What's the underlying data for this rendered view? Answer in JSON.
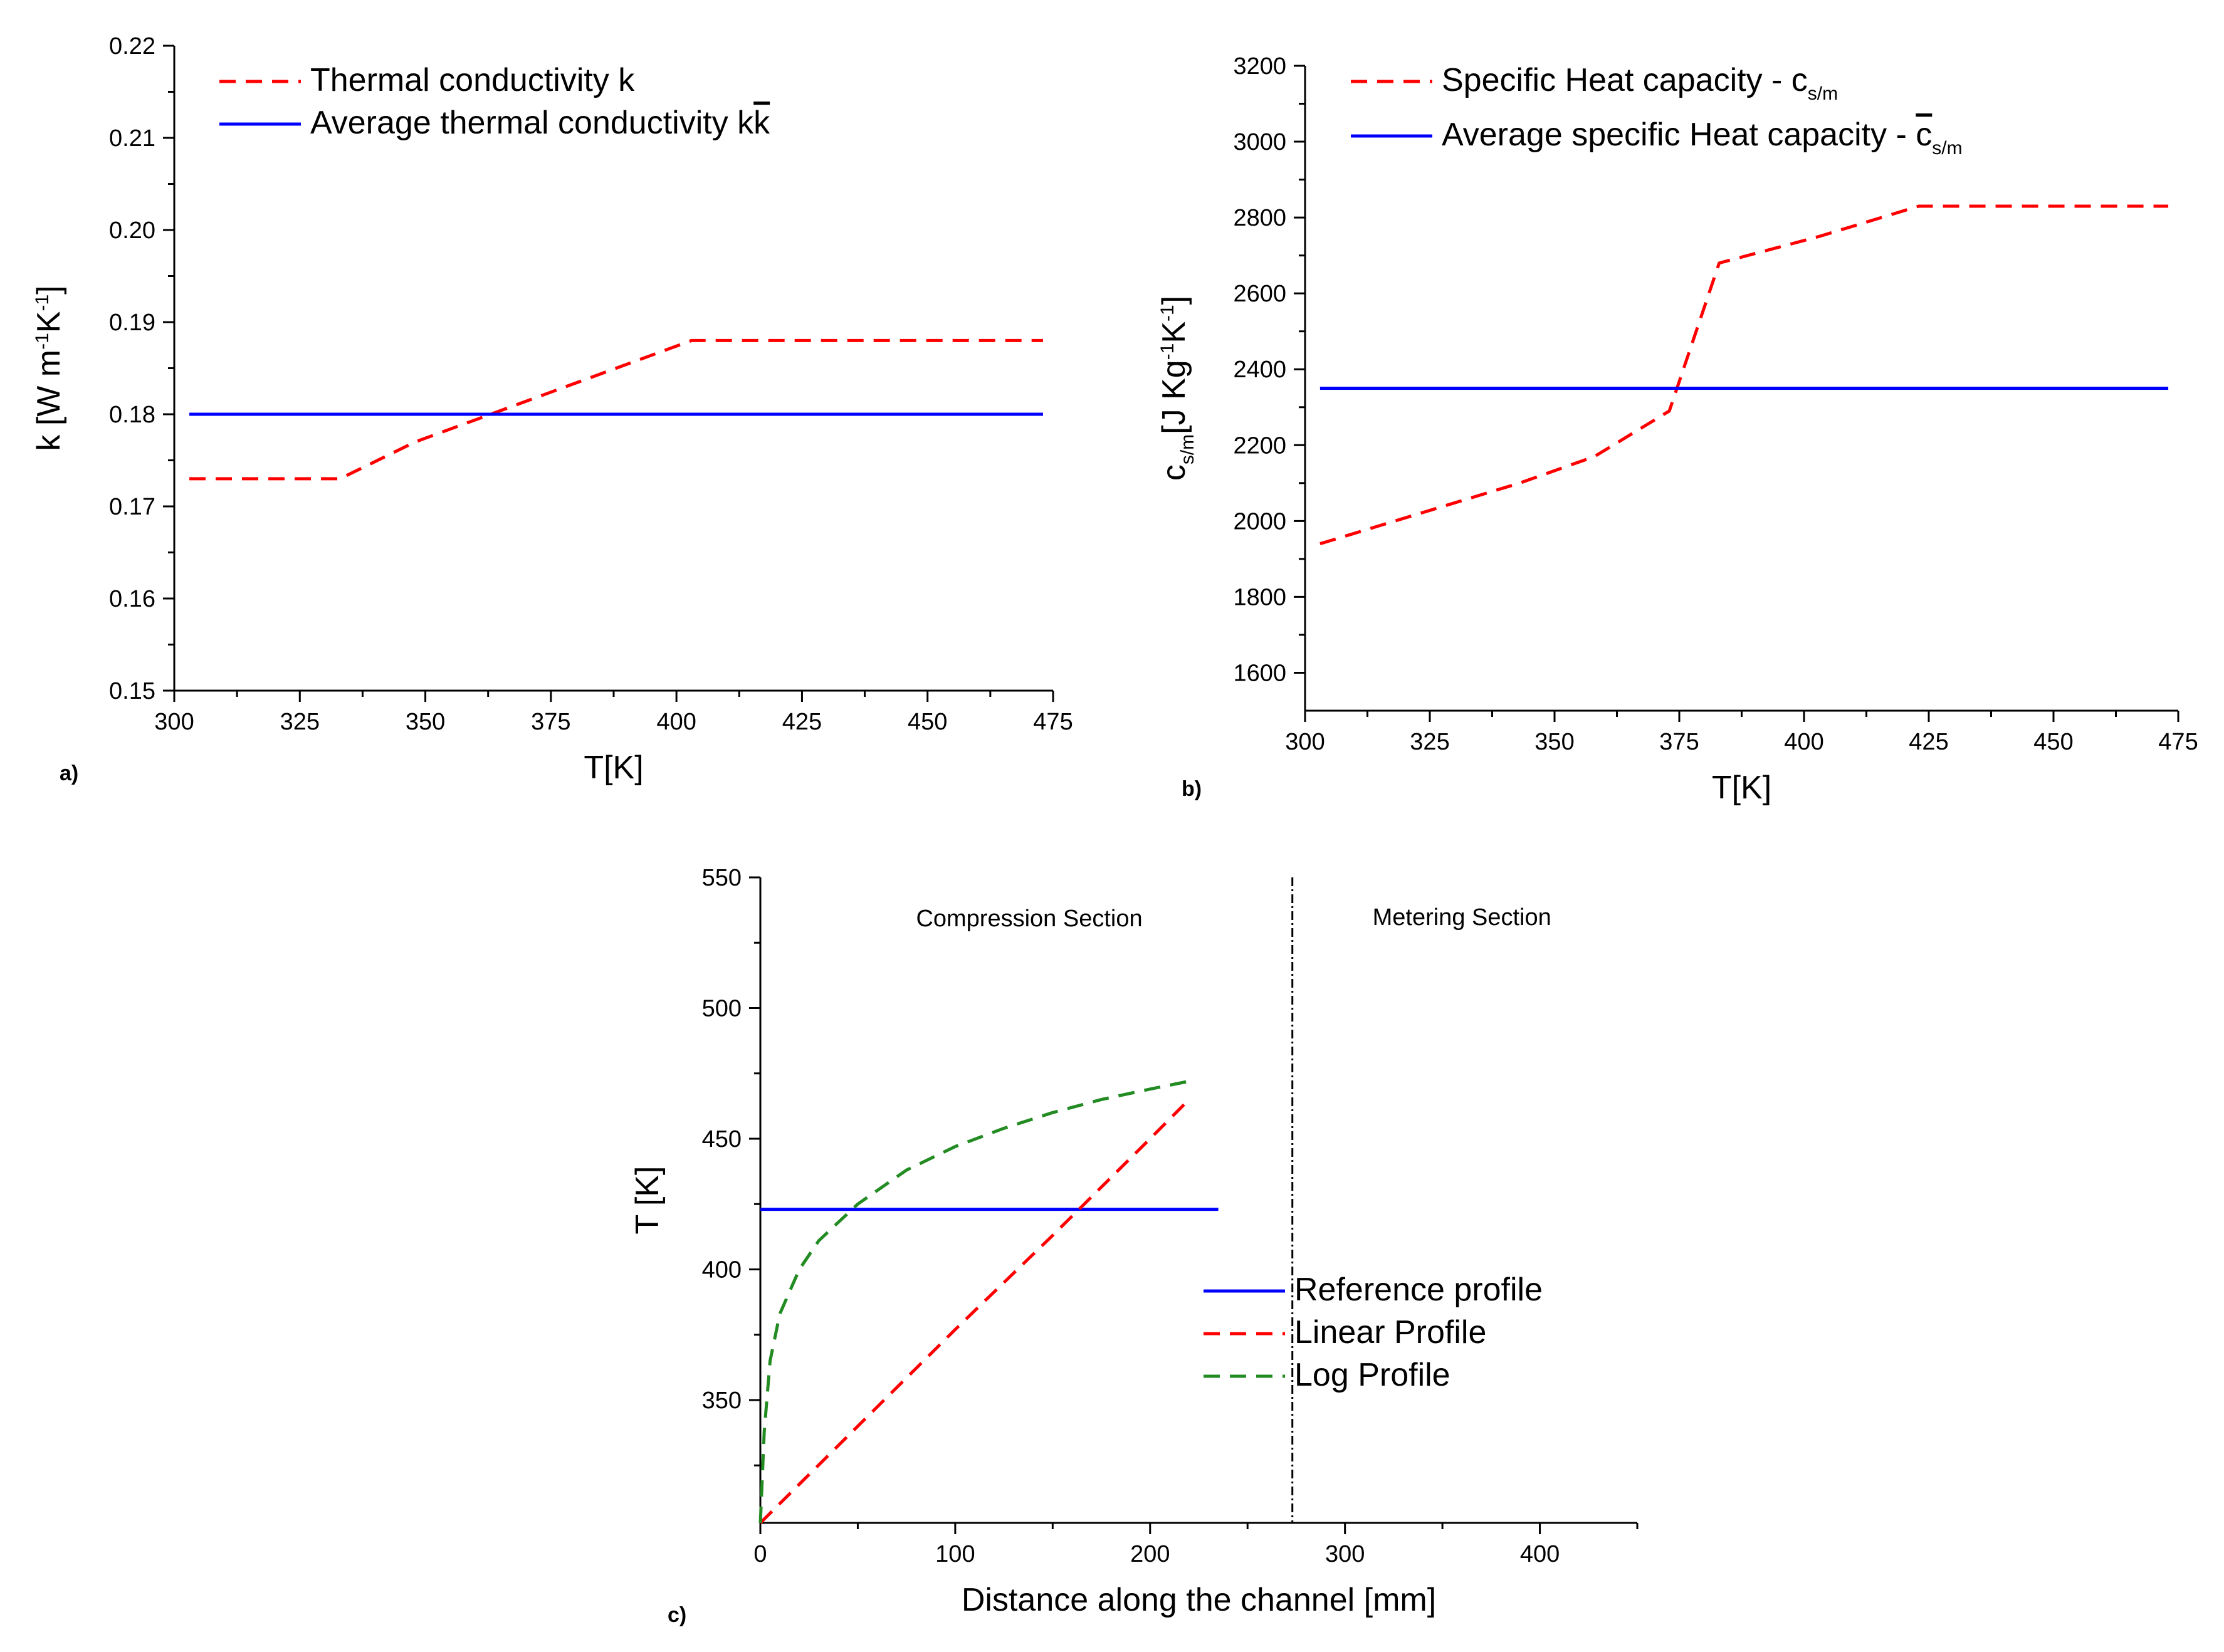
{
  "chart_data": [
    {
      "panel_label": "a)",
      "type": "line",
      "xlabel": "T[K]",
      "ylabel_parts": [
        "k [W m",
        "-1",
        "K",
        "-1",
        "]"
      ],
      "xlim": [
        300,
        475
      ],
      "ylim": [
        0.15,
        0.22
      ],
      "xticks": [
        300,
        325,
        350,
        375,
        400,
        425,
        450,
        475
      ],
      "yticks": [
        0.15,
        0.16,
        0.17,
        0.18,
        0.19,
        0.2,
        0.21,
        0.22
      ],
      "ytick_decimals": 2,
      "legend_position": "top-left",
      "grid": false,
      "series": [
        {
          "name": "Thermal conductivity k",
          "color": "#ff0000",
          "dashed": true,
          "x": [
            303,
            333,
            348,
            378,
            403,
            473
          ],
          "y": [
            0.173,
            0.173,
            0.177,
            0.183,
            0.188,
            0.188
          ]
        },
        {
          "name": "Average thermal conductivity k",
          "overline_text": "k",
          "color": "#0000ff",
          "dashed": false,
          "x": [
            303,
            473
          ],
          "y": [
            0.18,
            0.18
          ]
        }
      ]
    },
    {
      "panel_label": "b)",
      "type": "line",
      "xlabel": "T[K]",
      "ylabel_parts": [
        "c",
        "s/m",
        "[J Kg",
        "-1",
        "K",
        "-1",
        "]"
      ],
      "xlim": [
        300,
        475
      ],
      "ylim": [
        1500,
        3200
      ],
      "xticks": [
        300,
        325,
        350,
        375,
        400,
        425,
        450,
        475
      ],
      "yticks": [
        1600,
        1800,
        2000,
        2200,
        2400,
        2600,
        2800,
        3000,
        3200
      ],
      "ytick_decimals": 0,
      "legend_position": "top-left",
      "grid": false,
      "series": [
        {
          "name": "Specific Heat capacity - c",
          "name_sub": "s/m",
          "color": "#ff0000",
          "dashed": true,
          "x": [
            303,
            323,
            343,
            358,
            373,
            383,
            403,
            423,
            473
          ],
          "y": [
            1940,
            2020,
            2100,
            2170,
            2290,
            2680,
            2750,
            2830,
            2830
          ]
        },
        {
          "name": "Average specific Heat capacity - ",
          "overline_text": "c",
          "name_sub": "s/m",
          "color": "#0000ff",
          "dashed": false,
          "x": [
            303,
            473
          ],
          "y": [
            2350,
            2350
          ]
        }
      ]
    },
    {
      "panel_label": "c)",
      "type": "line",
      "xlabel": "Distance along the channel [mm]",
      "ylabel": "T [K]",
      "xlim": [
        0,
        450
      ],
      "ylim": [
        303,
        550
      ],
      "xticks": [
        0,
        100,
        200,
        300,
        400
      ],
      "yticks": [
        350,
        400,
        450,
        500,
        550
      ],
      "ytick_decimals": 0,
      "legend_position": "center-right",
      "grid": false,
      "annotations": [
        "Compression Section",
        "Metering Section"
      ],
      "section_boundary_x": 273,
      "series": [
        {
          "name": "Reference profile",
          "color": "#0000ff",
          "dashed": false,
          "x": [
            0,
            235
          ],
          "y": [
            423,
            423
          ]
        },
        {
          "name": "Linear Profile",
          "color": "#ff0000",
          "dashed": true,
          "x": [
            0,
            50,
            100,
            150,
            200,
            220
          ],
          "y": [
            303,
            340,
            377,
            413,
            450,
            465
          ]
        },
        {
          "name": "Log Profile",
          "color": "#228b22",
          "dashed": true,
          "x": [
            0,
            2,
            5,
            10,
            20,
            30,
            50,
            75,
            100,
            125,
            150,
            175,
            200,
            220
          ],
          "y": [
            303,
            338,
            365,
            383,
            400,
            411,
            425,
            438,
            447,
            454,
            460,
            465,
            469,
            472
          ]
        }
      ]
    }
  ]
}
